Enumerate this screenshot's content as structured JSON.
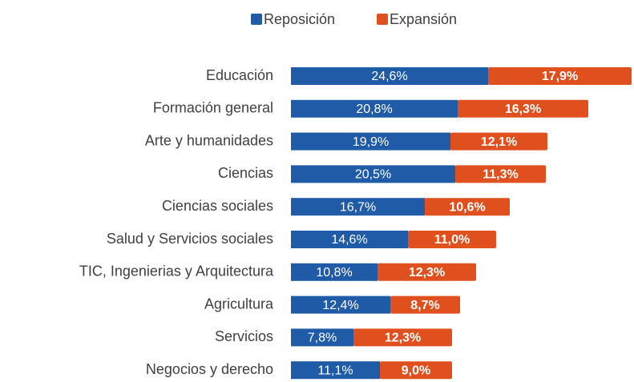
{
  "chart_data": {
    "type": "stacked_bar_horizontal",
    "categories": [
      "Educación",
      "Formación general",
      "Arte y humanidades",
      "Ciencias",
      "Ciencias sociales",
      "Salud y Servicios sociales",
      "TIC, Ingenierias y Arquitectura",
      "Agricultura",
      "Servicios",
      "Negocios y derecho"
    ],
    "series": [
      {
        "name": "Reposición",
        "color": "#1f5ba6",
        "values": [
          24.6,
          20.8,
          19.9,
          20.5,
          16.7,
          14.6,
          10.8,
          12.4,
          7.8,
          11.1
        ],
        "value_labels": [
          "24,6%",
          "20,8%",
          "19,9%",
          "20,5%",
          "16,7%",
          "14,6%",
          "10,8%",
          "12,4%",
          "7,8%",
          "11,1%"
        ]
      },
      {
        "name": "Expansión",
        "color": "#e0501e",
        "values": [
          17.9,
          16.3,
          12.1,
          11.3,
          10.6,
          11.0,
          12.3,
          8.7,
          12.3,
          9.0
        ],
        "value_labels": [
          "17,9%",
          "16,3%",
          "12,1%",
          "11,3%",
          "10,6%",
          "11,0%",
          "12,3%",
          "8,7%",
          "12,3%",
          "9,0%"
        ]
      }
    ],
    "legend": "top"
  }
}
